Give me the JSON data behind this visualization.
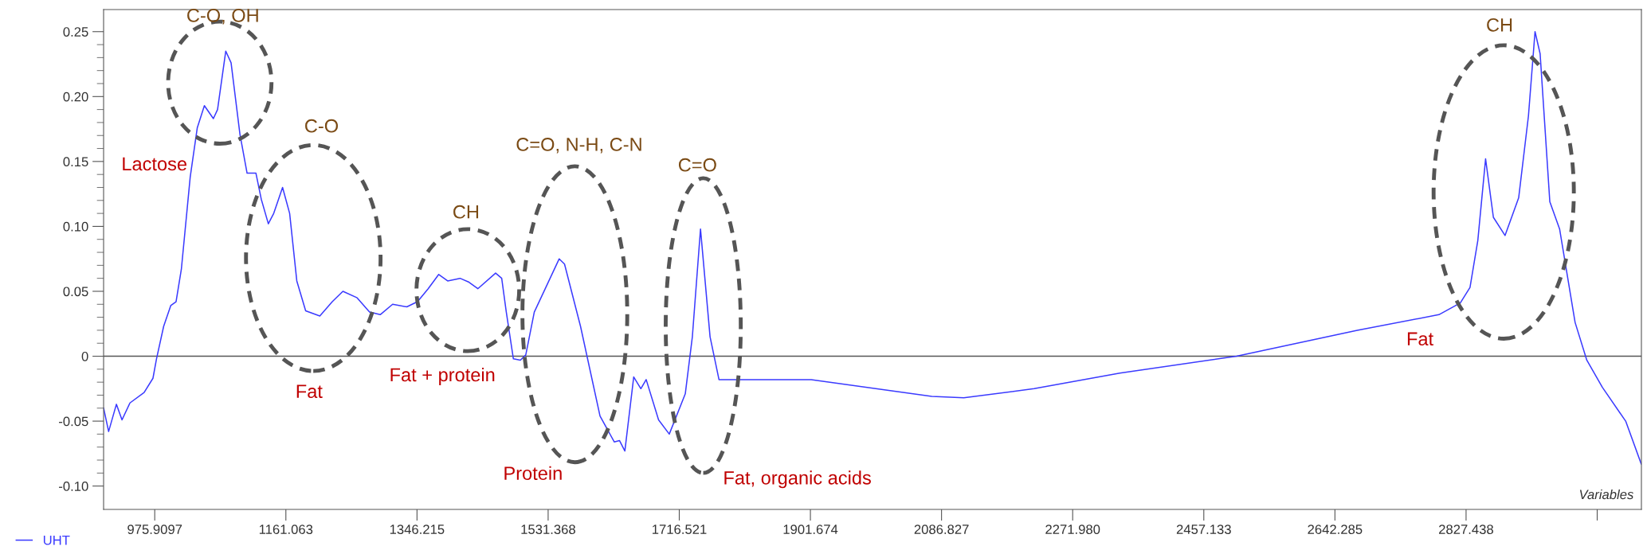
{
  "chart_data": {
    "type": "line",
    "xlabel": "Variables",
    "x": [
      903.7,
      910.8,
      921.8,
      929.7,
      940.9,
      960.9,
      973.4,
      978.4,
      988.5,
      998.5,
      1006,
      1013.5,
      1026,
      1036,
      1046,
      1058.7,
      1064.6,
      1076.2,
      1083.7,
      1096.2,
      1106.3,
      1118.8,
      1126.3,
      1136.3,
      1143.9,
      1156.4,
      1166.4,
      1176.5,
      1189,
      1209,
      1226.6,
      1241.6,
      1261.7,
      1279.2,
      1294.3,
      1311.8,
      1331.9,
      1346.9,
      1362,
      1376.9,
      1389.5,
      1407,
      1419.6,
      1432.1,
      1457.2,
      1465.8,
      1472.3,
      1482.3,
      1492.2,
      1499.8,
      1511.8,
      1547,
      1554.5,
      1577.1,
      1604.6,
      1624.7,
      1632.2,
      1639.7,
      1652.2,
      1662.3,
      1669.8,
      1687.3,
      1702.4,
      1725,
      1735,
      1746.5,
      1760,
      1772.6,
      1812.7,
      1902.8,
      2073.1,
      2118.3,
      2217.6,
      2338.6,
      2503.4,
      2673.8,
      2789.1,
      2819.3,
      2833,
      2844,
      2855,
      2866,
      2882.5,
      2901.7,
      2915.5,
      2924.8,
      2932,
      2945.7,
      2959.5,
      2981.4,
      2997.9,
      3019.9,
      3052.8,
      3074.8
    ],
    "series": [
      {
        "name": "UHT",
        "color": "#3a3aff",
        "values": [
          -0.04,
          -0.058,
          -0.037,
          -0.049,
          -0.036,
          -0.028,
          -0.017,
          -0.002,
          0.023,
          0.039,
          0.042,
          0.067,
          0.138,
          0.176,
          0.193,
          0.183,
          0.19,
          0.235,
          0.226,
          0.171,
          0.141,
          0.141,
          0.121,
          0.102,
          0.11,
          0.13,
          0.11,
          0.058,
          0.035,
          0.031,
          0.042,
          0.05,
          0.045,
          0.034,
          0.032,
          0.04,
          0.038,
          0.042,
          0.052,
          0.063,
          0.058,
          0.06,
          0.057,
          0.052,
          0.064,
          0.06,
          0.034,
          -0.002,
          -0.003,
          0.001,
          0.034,
          0.075,
          0.071,
          0.023,
          -0.046,
          -0.066,
          -0.065,
          -0.073,
          -0.016,
          -0.025,
          -0.018,
          -0.049,
          -0.06,
          -0.029,
          0.015,
          0.098,
          0.015,
          -0.018,
          -0.018,
          -0.018,
          -0.031,
          -0.032,
          -0.025,
          -0.013,
          0.0,
          0.02,
          0.032,
          0.041,
          0.053,
          0.089,
          0.152,
          0.107,
          0.093,
          0.122,
          0.185,
          0.25,
          0.233,
          0.119,
          0.098,
          0.026,
          -0.003,
          -0.024,
          -0.05,
          -0.083
        ]
      }
    ],
    "xlim": [
      903.7,
      3075
    ],
    "xticks": [
      975.9097,
      1161.063,
      1346.215,
      1531.368,
      1716.521,
      1901.674,
      2086.827,
      {
        "value": 2271.98,
        "label": "2271.980"
      },
      2457.133,
      2642.285,
      2827.438,
      {
        "value": 3012.591,
        "label": null
      }
    ],
    "ylim": [
      -0.118,
      0.267
    ],
    "yticks": [
      {
        "value": -0.1,
        "label": "-0.10"
      },
      -0.05,
      0,
      0.05,
      {
        "value": 0.1,
        "label": "0.10"
      },
      0.15,
      {
        "value": 0.2,
        "label": "0.20"
      },
      0.25
    ],
    "ref_lines": [
      {
        "axis": "y",
        "value": 0,
        "color": "#555555"
      }
    ],
    "grid": false,
    "legend": "bottom left",
    "marker": "none",
    "line_style": "solid",
    "annotations": [
      "C-O, OH",
      "Lactose",
      "C-O",
      "Fat",
      "CH",
      "Fat + protein",
      "C=O, N-H, C-N",
      "Protein",
      "C=O",
      "Fat, organic acids",
      "CH",
      "Fat"
    ]
  }
}
